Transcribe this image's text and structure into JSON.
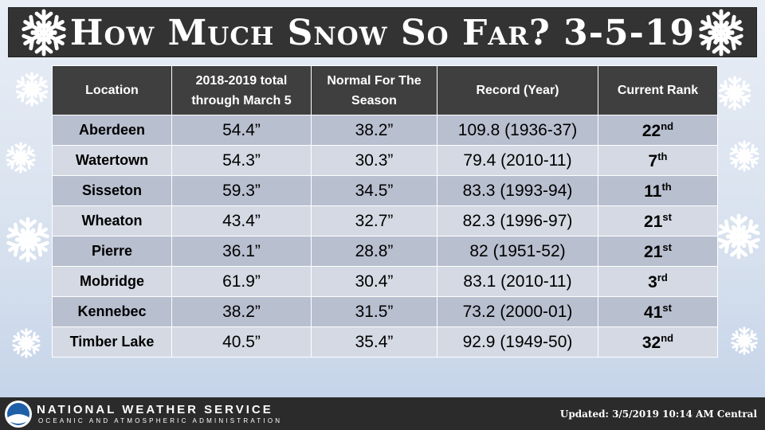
{
  "header": {
    "title": "How Much Snow So Far? 3-5-19"
  },
  "table": {
    "columns": [
      "Location",
      "2018-2019 total through March 5",
      "Normal For The Season",
      "Record (Year)",
      "Current Rank"
    ],
    "rows": [
      {
        "location": "Aberdeen",
        "total": "54.4”",
        "normal": "38.2”",
        "record": "109.8 (1936-37)",
        "rank": "22",
        "rank_suffix": "nd"
      },
      {
        "location": "Watertown",
        "total": "54.3”",
        "normal": "30.3”",
        "record": "79.4 (2010-11)",
        "rank": "7",
        "rank_suffix": "th"
      },
      {
        "location": "Sisseton",
        "total": "59.3”",
        "normal": "34.5”",
        "record": "83.3 (1993-94)",
        "rank": "11",
        "rank_suffix": "th"
      },
      {
        "location": "Wheaton",
        "total": "43.4”",
        "normal": "32.7”",
        "record": "82.3 (1996-97)",
        "rank": "21",
        "rank_suffix": "st"
      },
      {
        "location": "Pierre",
        "total": "36.1”",
        "normal": "28.8”",
        "record": "82 (1951-52)",
        "rank": "21",
        "rank_suffix": "st"
      },
      {
        "location": "Mobridge",
        "total": "61.9”",
        "normal": "30.4”",
        "record": "83.1 (2010-11)",
        "rank": "3",
        "rank_suffix": "rd"
      },
      {
        "location": "Kennebec",
        "total": "38.2”",
        "normal": "31.5”",
        "record": "73.2 (2000-01)",
        "rank": "41",
        "rank_suffix": "st"
      },
      {
        "location": "Timber Lake",
        "total": "40.5”",
        "normal": "35.4”",
        "record": "92.9 (1949-50)",
        "rank": "32",
        "rank_suffix": "nd"
      }
    ]
  },
  "footer": {
    "agency": "NATIONAL WEATHER SERVICE",
    "parent": "OCEANIC AND ATMOSPHERIC ADMINISTRATION",
    "updated": "Updated: 3/5/2019 10:14 AM Central"
  }
}
